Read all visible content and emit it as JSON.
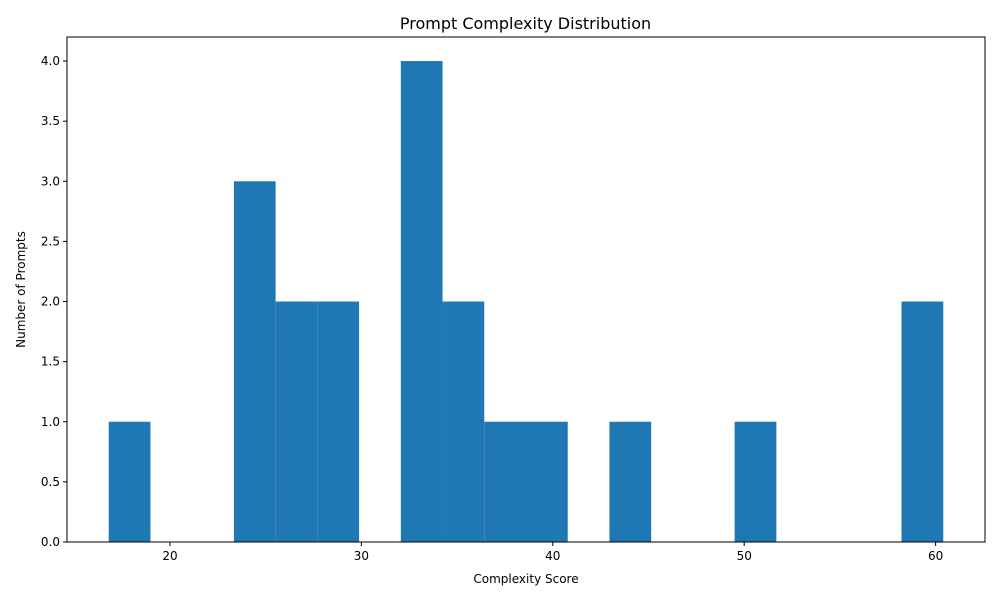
{
  "chart_data": {
    "type": "bar",
    "title": "Prompt Complexity Distribution",
    "xlabel": "Complexity Score",
    "ylabel": "Number of Prompts",
    "bin_edges": [
      16.8,
      18.98,
      21.16,
      23.34,
      25.52,
      27.7,
      29.88,
      32.06,
      34.24,
      36.42,
      38.6,
      40.78,
      42.96,
      45.14,
      47.32,
      49.5,
      51.68,
      53.86,
      56.04,
      58.22,
      60.4
    ],
    "counts": [
      1,
      0,
      0,
      3,
      2,
      2,
      0,
      4,
      2,
      1,
      1,
      0,
      1,
      0,
      0,
      1,
      0,
      0,
      0,
      2
    ],
    "xlim": [
      14.62,
      62.58
    ],
    "ylim": [
      0,
      4.2
    ],
    "x_ticks": [
      20,
      30,
      40,
      50,
      60
    ],
    "x_tick_labels": [
      "20",
      "30",
      "40",
      "50",
      "60"
    ],
    "y_ticks": [
      0,
      0.5,
      1,
      1.5,
      2,
      2.5,
      3,
      3.5,
      4
    ],
    "y_tick_labels": [
      "0.0",
      "0.5",
      "1.0",
      "1.5",
      "2.0",
      "2.5",
      "3.0",
      "3.5",
      "4.0"
    ],
    "bar_color": "#1f77b4",
    "grid": false,
    "legend": "none"
  }
}
